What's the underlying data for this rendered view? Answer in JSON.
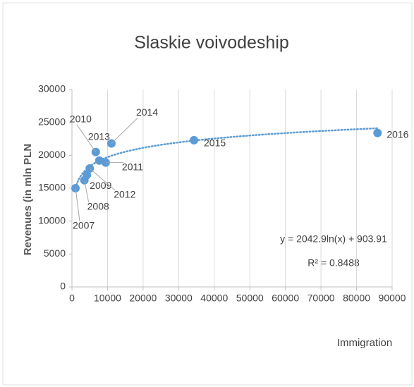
{
  "chart_data": {
    "type": "scatter",
    "title": "Slaskie voivodeship",
    "x_label": "Immigration",
    "y_label": "Revenues (in mln PLN",
    "labels": [
      "2007",
      "2008",
      "2009",
      "2010",
      "2011",
      "2012",
      "2013",
      "2014",
      "2015",
      "2016"
    ],
    "x": [
      1000,
      3500,
      4200,
      6700,
      9500,
      5000,
      7700,
      11100,
      34300,
      85900
    ],
    "values": [
      15000,
      16200,
      17000,
      20500,
      18900,
      18000,
      19200,
      21800,
      22300,
      23400
    ],
    "color": "#5b9bd5",
    "trendline": {
      "a": 2042.9,
      "b": 903.91,
      "label": "y = 2042.9ln(x) + 903.91",
      "r2_label": "R² = 0.8488"
    },
    "xlim": [
      0,
      90000
    ],
    "xticks": [
      0,
      10000,
      20000,
      30000,
      40000,
      50000,
      60000,
      70000,
      80000,
      90000
    ],
    "ylim": [
      0,
      30000
    ],
    "yticks": [
      0,
      5000,
      10000,
      15000,
      20000,
      25000,
      30000
    ],
    "grid": true
  }
}
